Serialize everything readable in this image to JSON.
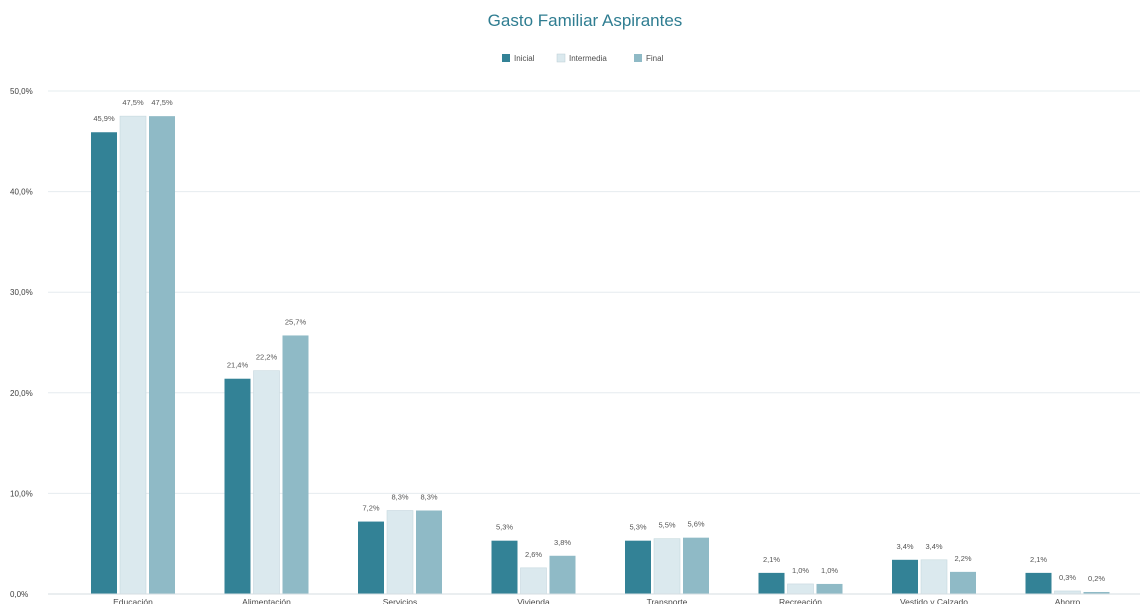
{
  "chart_data": {
    "type": "bar",
    "title": "Gasto Familiar Aspirantes",
    "categories": [
      "Educación",
      "Alimentación",
      "Servicios",
      "Vivienda",
      "Transporte",
      "Recreación",
      "Vestido y Calzado",
      "Ahorro"
    ],
    "series": [
      {
        "name": "Inicial",
        "color": "#338296",
        "values": [
          45.9,
          21.4,
          7.2,
          5.3,
          5.3,
          2.1,
          3.4,
          2.1
        ],
        "labels": [
          "45,9%",
          "21,4%",
          "7,2%",
          "5,3%",
          "5,3%",
          "2,1%",
          "3,4%",
          "2,1%"
        ]
      },
      {
        "name": "Intermedia",
        "color": "#dbe9ee",
        "values": [
          47.5,
          22.2,
          8.3,
          2.6,
          5.5,
          1.0,
          3.4,
          0.3
        ],
        "labels": [
          "47,5%",
          "22,2%",
          "8,3%",
          "2,6%",
          "5,5%",
          "1,0%",
          "3,4%",
          "0,3%"
        ]
      },
      {
        "name": "Final",
        "color": "#8fbac6",
        "values": [
          47.5,
          25.7,
          8.3,
          3.8,
          5.6,
          1.0,
          2.2,
          0.2
        ],
        "labels": [
          "47,5%",
          "25,7%",
          "8,3%",
          "3,8%",
          "5,6%",
          "1,0%",
          "2,2%",
          "0,2%"
        ]
      }
    ],
    "yticks": [
      0,
      10,
      20,
      30,
      40,
      50
    ],
    "ytick_labels": [
      "0,0%",
      "10,0%",
      "20,0%",
      "30,0%",
      "40,0%",
      "50,0%"
    ],
    "ylim": [
      0,
      50
    ],
    "grid": true,
    "legend_position": "top-center",
    "accent_color": "#2f7d91"
  }
}
